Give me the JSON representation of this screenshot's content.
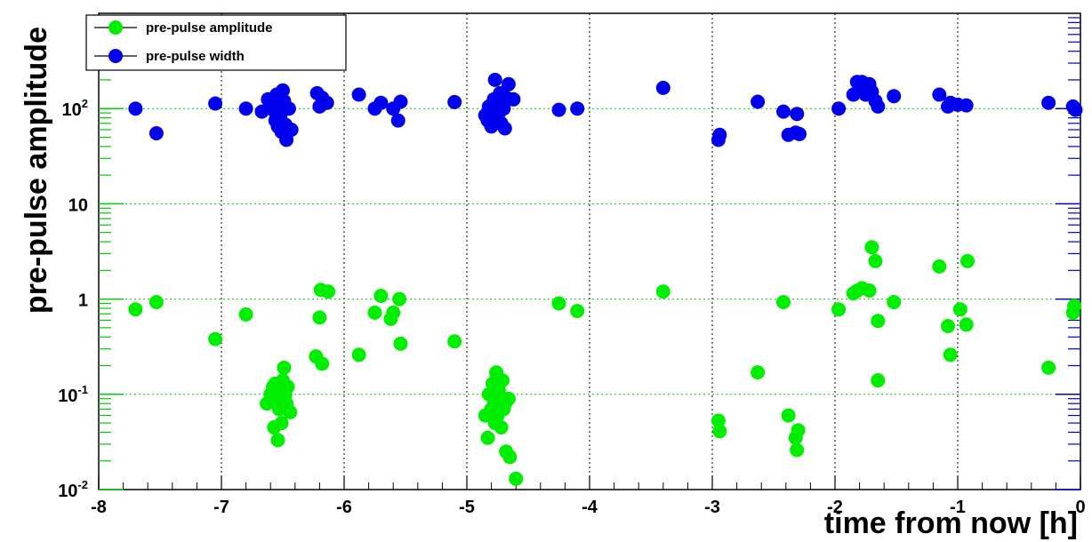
{
  "chart_data": {
    "type": "scatter",
    "title": "",
    "xlabel": "time from now [h]",
    "ylabel": "pre-pulse amplitude",
    "xlim": [
      -8,
      0
    ],
    "ylim": [
      0.01,
      1000
    ],
    "y_scale": "log",
    "x_ticks": [
      -8,
      -7,
      -6,
      -5,
      -4,
      -3,
      -2,
      -1,
      0
    ],
    "y_ticks": [
      {
        "value": 0.01,
        "base": "10",
        "exp": "-2"
      },
      {
        "value": 0.1,
        "base": "10",
        "exp": "-1"
      },
      {
        "value": 1,
        "base": "1",
        "exp": ""
      },
      {
        "value": 10,
        "base": "10",
        "exp": ""
      },
      {
        "value": 100,
        "base": "10",
        "exp": "2"
      }
    ],
    "grid": true,
    "legend_position": "top-left",
    "series": [
      {
        "name": "pre-pulse amplitude",
        "color": "#00ee00",
        "points": [
          [
            -7.7,
            0.78
          ],
          [
            -7.53,
            0.93
          ],
          [
            -7.05,
            0.38
          ],
          [
            -6.8,
            0.69
          ],
          [
            -6.63,
            0.08
          ],
          [
            -6.6,
            0.1
          ],
          [
            -6.58,
            0.12
          ],
          [
            -6.57,
            0.045
          ],
          [
            -6.56,
            0.13
          ],
          [
            -6.55,
            0.09
          ],
          [
            -6.54,
            0.033
          ],
          [
            -6.53,
            0.07
          ],
          [
            -6.52,
            0.11
          ],
          [
            -6.51,
            0.05
          ],
          [
            -6.5,
            0.14
          ],
          [
            -6.49,
            0.19
          ],
          [
            -6.48,
            0.1
          ],
          [
            -6.47,
            0.08
          ],
          [
            -6.46,
            0.12
          ],
          [
            -6.44,
            0.065
          ],
          [
            -6.23,
            0.25
          ],
          [
            -6.2,
            0.64
          ],
          [
            -6.19,
            1.25
          ],
          [
            -6.18,
            0.21
          ],
          [
            -6.13,
            1.2
          ],
          [
            -5.88,
            0.26
          ],
          [
            -5.75,
            0.72
          ],
          [
            -5.7,
            1.08
          ],
          [
            -5.62,
            0.62
          ],
          [
            -5.6,
            0.72
          ],
          [
            -5.55,
            1.0
          ],
          [
            -5.54,
            0.34
          ],
          [
            -5.1,
            0.36
          ],
          [
            -4.85,
            0.06
          ],
          [
            -4.83,
            0.035
          ],
          [
            -4.82,
            0.1
          ],
          [
            -4.8,
            0.07
          ],
          [
            -4.79,
            0.13
          ],
          [
            -4.78,
            0.08
          ],
          [
            -4.77,
            0.05
          ],
          [
            -4.76,
            0.17
          ],
          [
            -4.75,
            0.06
          ],
          [
            -4.74,
            0.11
          ],
          [
            -4.73,
            0.09
          ],
          [
            -4.72,
            0.045
          ],
          [
            -4.71,
            0.14
          ],
          [
            -4.7,
            0.07
          ],
          [
            -4.69,
            0.08
          ],
          [
            -4.68,
            0.025
          ],
          [
            -4.66,
            0.09
          ],
          [
            -4.65,
            0.022
          ],
          [
            -4.6,
            0.013
          ],
          [
            -4.25,
            0.9
          ],
          [
            -4.1,
            0.75
          ],
          [
            -3.4,
            1.2
          ],
          [
            -2.95,
            0.053
          ],
          [
            -2.94,
            0.041
          ],
          [
            -2.63,
            0.17
          ],
          [
            -2.42,
            0.93
          ],
          [
            -2.38,
            0.06
          ],
          [
            -2.32,
            0.035
          ],
          [
            -2.31,
            0.026
          ],
          [
            -2.3,
            0.042
          ],
          [
            -1.97,
            0.78
          ],
          [
            -1.85,
            1.15
          ],
          [
            -1.82,
            1.22
          ],
          [
            -1.78,
            1.3
          ],
          [
            -1.72,
            1.23
          ],
          [
            -1.7,
            3.5
          ],
          [
            -1.67,
            2.5
          ],
          [
            -1.65,
            0.59
          ],
          [
            -1.65,
            0.14
          ],
          [
            -1.52,
            0.93
          ],
          [
            -1.15,
            2.2
          ],
          [
            -1.08,
            0.52
          ],
          [
            -1.06,
            0.26
          ],
          [
            -0.98,
            0.78
          ],
          [
            -0.93,
            0.54
          ],
          [
            -0.92,
            2.5
          ],
          [
            -0.26,
            0.19
          ],
          [
            -0.06,
            0.72
          ],
          [
            -0.05,
            0.85
          ]
        ]
      },
      {
        "name": "pre-pulse width",
        "color": "#0000ee",
        "points": [
          [
            -7.7,
            100
          ],
          [
            -7.53,
            55
          ],
          [
            -7.05,
            113
          ],
          [
            -6.8,
            100
          ],
          [
            -6.67,
            93
          ],
          [
            -6.62,
            125
          ],
          [
            -6.58,
            110
          ],
          [
            -6.57,
            95
          ],
          [
            -6.56,
            75
          ],
          [
            -6.55,
            140
          ],
          [
            -6.54,
            65
          ],
          [
            -6.53,
            100
          ],
          [
            -6.52,
            85
          ],
          [
            -6.51,
            57
          ],
          [
            -6.5,
            155
          ],
          [
            -6.49,
            120
          ],
          [
            -6.48,
            68
          ],
          [
            -6.47,
            47
          ],
          [
            -6.45,
            100
          ],
          [
            -6.43,
            60
          ],
          [
            -6.22,
            145
          ],
          [
            -6.2,
            105
          ],
          [
            -6.18,
            130
          ],
          [
            -6.14,
            115
          ],
          [
            -5.88,
            140
          ],
          [
            -5.75,
            100
          ],
          [
            -5.7,
            115
          ],
          [
            -5.6,
            100
          ],
          [
            -5.56,
            75
          ],
          [
            -5.54,
            118
          ],
          [
            -5.1,
            117
          ],
          [
            -4.85,
            85
          ],
          [
            -4.83,
            75
          ],
          [
            -4.82,
            105
          ],
          [
            -4.8,
            65
          ],
          [
            -4.79,
            95
          ],
          [
            -4.78,
            125
          ],
          [
            -4.77,
            200
          ],
          [
            -4.76,
            80
          ],
          [
            -4.75,
            110
          ],
          [
            -4.74,
            90
          ],
          [
            -4.73,
            145
          ],
          [
            -4.72,
            70
          ],
          [
            -4.7,
            100
          ],
          [
            -4.69,
            62
          ],
          [
            -4.68,
            130
          ],
          [
            -4.66,
            180
          ],
          [
            -4.62,
            125
          ],
          [
            -4.25,
            97
          ],
          [
            -4.1,
            100
          ],
          [
            -3.4,
            165
          ],
          [
            -2.95,
            47
          ],
          [
            -2.94,
            53
          ],
          [
            -2.63,
            118
          ],
          [
            -2.42,
            93
          ],
          [
            -2.38,
            53
          ],
          [
            -2.32,
            56
          ],
          [
            -2.31,
            88
          ],
          [
            -2.29,
            54
          ],
          [
            -1.97,
            100
          ],
          [
            -1.85,
            140
          ],
          [
            -1.82,
            190
          ],
          [
            -1.8,
            160
          ],
          [
            -1.78,
            190
          ],
          [
            -1.75,
            140
          ],
          [
            -1.72,
            180
          ],
          [
            -1.7,
            150
          ],
          [
            -1.67,
            120
          ],
          [
            -1.65,
            105
          ],
          [
            -1.52,
            135
          ],
          [
            -1.15,
            140
          ],
          [
            -1.08,
            105
          ],
          [
            -1.06,
            115
          ],
          [
            -1.0,
            110
          ],
          [
            -0.93,
            108
          ],
          [
            -0.26,
            115
          ],
          [
            -0.06,
            105
          ],
          [
            -0.04,
            97
          ]
        ]
      }
    ]
  }
}
